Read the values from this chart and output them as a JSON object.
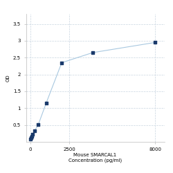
{
  "x": [
    0,
    31.25,
    62.5,
    125,
    250,
    500,
    1000,
    2000,
    4000,
    8000
  ],
  "y": [
    0.082,
    0.12,
    0.16,
    0.22,
    0.32,
    0.52,
    1.15,
    2.35,
    2.65,
    2.95
  ],
  "line_color": "#a8c8e0",
  "marker_color": "#1a3a6b",
  "marker_size": 3.5,
  "xlabel_line1": "Mouse SMARCAL1",
  "xlabel_line2": "Concentration (pg/ml)",
  "ylabel": "OD",
  "xlim": [
    -300,
    8600
  ],
  "ylim": [
    0,
    3.8
  ],
  "yticks": [
    0.5,
    1.0,
    1.5,
    2.0,
    2.5,
    3.0,
    3.5
  ],
  "ytick_labels": [
    "0.5",
    "1",
    "1.5",
    "2",
    "2.5",
    "3",
    "3.5"
  ],
  "xticks": [
    0,
    2500,
    8000
  ],
  "xtick_labels": [
    "0",
    "2500",
    "8000"
  ],
  "grid_color": "#c8d4e0",
  "background_color": "#ffffff",
  "font_size_label": 5,
  "font_size_tick": 5,
  "linewidth": 0.8
}
